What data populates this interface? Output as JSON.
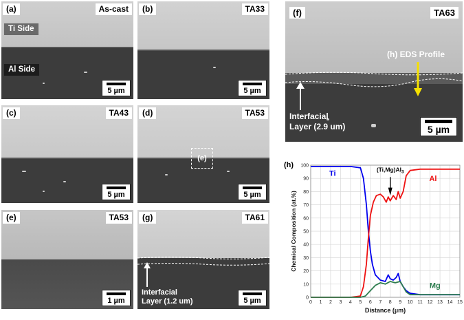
{
  "panels": {
    "a": {
      "letter": "(a)",
      "title": "As-cast",
      "ti_side": "Ti Side",
      "al_side": "Al Side",
      "scale": "5 µm"
    },
    "b": {
      "letter": "(b)",
      "title": "TA33",
      "scale": "5 µm"
    },
    "c": {
      "letter": "(c)",
      "title": "TA43",
      "scale": "5 µm"
    },
    "d": {
      "letter": "(d)",
      "title": "TA53",
      "scale": "5 µm",
      "box_label": "(e)"
    },
    "e": {
      "letter": "(e)",
      "title": "TA53",
      "scale": "1 µm"
    },
    "g": {
      "letter": "(g)",
      "title": "TA61",
      "scale": "5 µm",
      "note_line1": "Interfacial",
      "note_line2": "Layer (1.2 um)"
    },
    "f": {
      "letter": "(f)",
      "title": "TA63",
      "scale": "5 µm",
      "eds": "(h) EDS Profile",
      "note_line1": "Interfacial",
      "note_line2": "Layer (2.9 um)"
    }
  },
  "colors": {
    "ti": "#0000ee",
    "al": "#ee1111",
    "mg": "#2e7d4f",
    "arrow": "#f5e000"
  },
  "chart_data": {
    "type": "line",
    "panel_label": "(h)",
    "xlabel": "Distance (µm)",
    "ylabel": "Chemical Composition (at.%)",
    "xlim": [
      0,
      15
    ],
    "ylim": [
      0,
      100
    ],
    "xticks": [
      "0",
      "1",
      "2",
      "3",
      "4",
      "5",
      "6",
      "7",
      "8",
      "9",
      "10",
      "11",
      "12",
      "13",
      "14",
      "15"
    ],
    "yticks": [
      "0",
      "10",
      "20",
      "30",
      "40",
      "50",
      "60",
      "70",
      "80",
      "90",
      "100"
    ],
    "annotation": {
      "text": "(Ti,Mg)Al",
      "sub": "3",
      "x": 8,
      "y": 75
    },
    "series": [
      {
        "name": "Ti",
        "label_x": 2.2,
        "label_y": 92,
        "x": [
          0,
          1,
          2,
          3,
          4,
          5,
          5.3,
          5.6,
          5.8,
          6,
          6.2,
          6.5,
          7,
          7.5,
          7.8,
          8,
          8.3,
          8.6,
          8.8,
          9,
          9.3,
          9.6,
          10,
          11,
          12,
          13,
          14,
          15
        ],
        "y": [
          99,
          99,
          99,
          99,
          99,
          98,
          90,
          70,
          50,
          35,
          25,
          17,
          13,
          12,
          17,
          14,
          13,
          15,
          18,
          12,
          8,
          5,
          3,
          2,
          2,
          2,
          2,
          2
        ]
      },
      {
        "name": "Al",
        "label_x": 12.3,
        "label_y": 88,
        "x": [
          0,
          1,
          2,
          3,
          4,
          5,
          5.3,
          5.6,
          5.8,
          6,
          6.3,
          6.6,
          7,
          7.3,
          7.6,
          7.8,
          8,
          8.3,
          8.6,
          8.8,
          9,
          9.3,
          9.6,
          10,
          11,
          12,
          13,
          14,
          15
        ],
        "y": [
          0,
          0,
          0,
          0,
          0,
          1,
          8,
          25,
          45,
          62,
          72,
          77,
          78,
          76,
          72,
          76,
          73,
          77,
          74,
          80,
          75,
          80,
          92,
          96,
          97,
          97,
          97,
          97,
          97
        ]
      },
      {
        "name": "Mg",
        "label_x": 12.5,
        "label_y": 7,
        "x": [
          0,
          1,
          2,
          3,
          4,
          5,
          5.5,
          6,
          6.5,
          7,
          7.5,
          8,
          8.5,
          9,
          9.3,
          9.6,
          10,
          11,
          12,
          13,
          14,
          15
        ],
        "y": [
          0,
          0,
          0,
          0,
          0,
          0,
          1,
          5,
          9,
          11,
          10,
          12,
          11,
          12,
          8,
          4,
          2,
          2,
          2,
          2,
          2,
          2
        ]
      }
    ]
  }
}
